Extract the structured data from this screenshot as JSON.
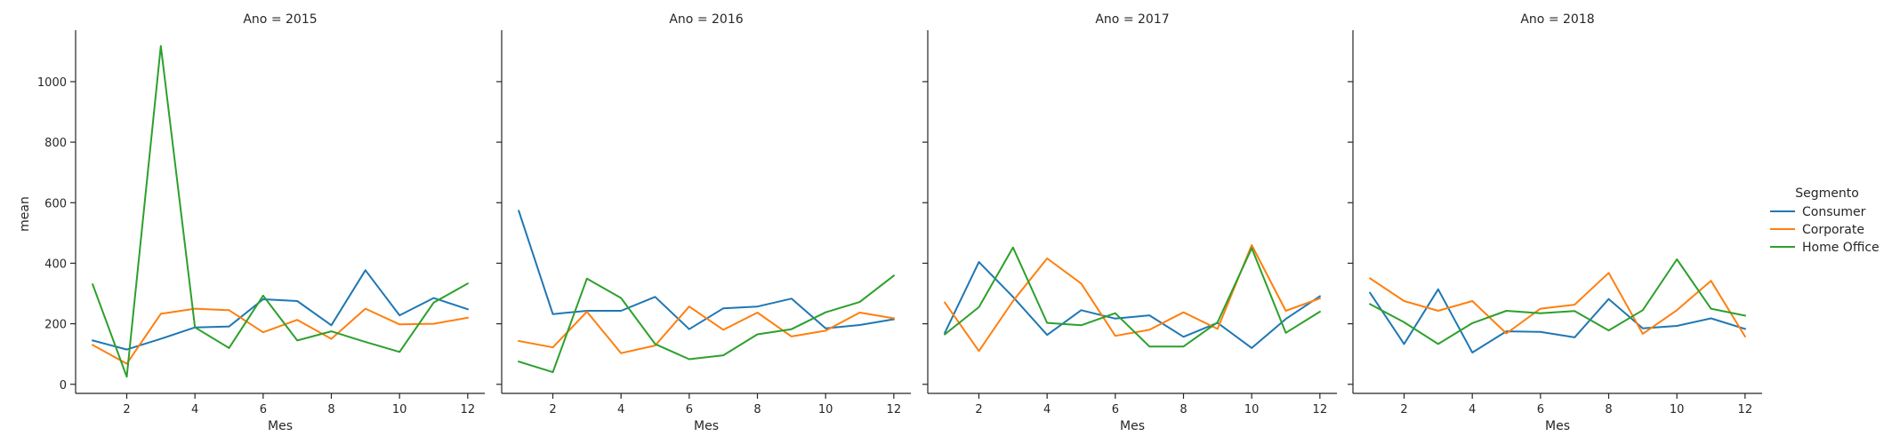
{
  "chart_data": {
    "type": "line",
    "facet_label": "Ano",
    "xlabel": "Mes",
    "ylabel": "mean",
    "xlim": [
      0.5,
      12.5
    ],
    "ylim": [
      -30,
      1170
    ],
    "x_ticks": [
      "2",
      "4",
      "6",
      "8",
      "10",
      "12"
    ],
    "y_ticks": [
      "0",
      "200",
      "400",
      "600",
      "800",
      "1000"
    ],
    "x": [
      1,
      2,
      3,
      4,
      5,
      6,
      7,
      8,
      9,
      10,
      11,
      12
    ],
    "legend": {
      "title": "Segmento",
      "position": "right"
    },
    "colors": {
      "Consumer": "#1f77b4",
      "Corporate": "#ff7f0e",
      "Home Office": "#2ca02c"
    },
    "panels": [
      {
        "title": "Ano = 2015",
        "series": [
          {
            "name": "Consumer",
            "values": [
              145,
              115,
              150,
              188,
              191,
              281,
              275,
              195,
              377,
              228,
              285,
              248
            ]
          },
          {
            "name": "Corporate",
            "values": [
              130,
              68,
              233,
              250,
              245,
              172,
              213,
              150,
              250,
              198,
              200,
              220
            ]
          },
          {
            "name": "Home Office",
            "values": [
              330,
              25,
              1118,
              188,
              120,
              293,
              145,
              175,
              140,
              107,
              270,
              333
            ]
          }
        ]
      },
      {
        "title": "Ano = 2016",
        "series": [
          {
            "name": "Consumer",
            "values": [
              573,
              232,
              243,
              243,
              289,
              182,
              251,
              257,
              283,
              185,
              196,
              215
            ]
          },
          {
            "name": "Corporate",
            "values": [
              143,
              122,
              240,
              103,
              128,
              257,
              180,
              237,
              158,
              177,
              237,
              218
            ]
          },
          {
            "name": "Home Office",
            "values": [
              75,
              40,
              349,
              285,
              133,
              83,
              96,
              165,
              182,
              238,
              272,
              359
            ]
          }
        ]
      },
      {
        "title": "Ano = 2017",
        "series": [
          {
            "name": "Consumer",
            "values": [
              170,
              404,
              289,
              163,
              245,
              217,
              228,
              157,
              203,
              120,
              216,
              291
            ]
          },
          {
            "name": "Corporate",
            "values": [
              270,
              110,
              275,
              416,
              333,
              160,
              180,
              238,
              183,
              460,
              243,
              284
            ]
          },
          {
            "name": "Home Office",
            "values": [
              165,
              255,
              452,
              203,
              195,
              235,
              125,
              125,
              205,
              450,
              170,
              240
            ]
          }
        ]
      },
      {
        "title": "Ano = 2018",
        "series": [
          {
            "name": "Consumer",
            "values": [
              302,
              133,
              314,
              105,
              175,
              173,
              155,
              282,
              185,
              193,
              218,
              183
            ]
          },
          {
            "name": "Corporate",
            "values": [
              350,
              275,
              243,
              275,
              168,
              250,
              263,
              368,
              167,
              245,
              342,
              158
            ]
          },
          {
            "name": "Home Office",
            "values": [
              265,
              205,
              133,
              202,
              243,
              235,
              242,
              178,
              245,
              413,
              250,
              227
            ]
          }
        ]
      }
    ]
  }
}
